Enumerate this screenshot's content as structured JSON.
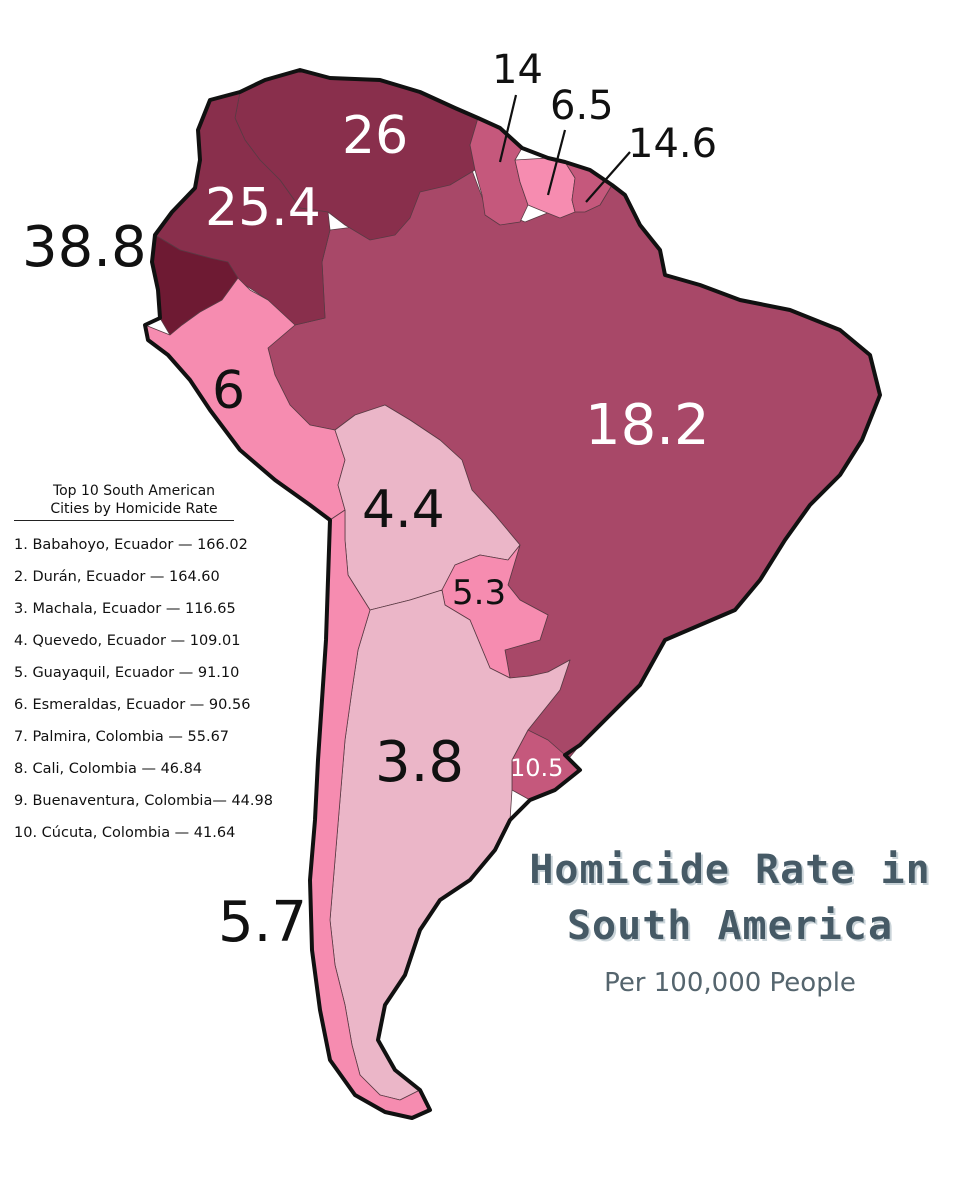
{
  "title": {
    "line1": "Homicide Rate in",
    "line2": "South America",
    "subtitle": "Per 100,000 People"
  },
  "colors": {
    "darkest": "#6e1a33",
    "dark": "#892f4c",
    "medium_dark": "#a84868",
    "medium": "#c5587c",
    "light": "#f68cb0",
    "lightest": "#ebb6c8",
    "outline": "#111111",
    "title": "#465a66"
  },
  "countries": [
    {
      "name": "Ecuador",
      "rate": "38.8"
    },
    {
      "name": "Venezuela",
      "rate": "26"
    },
    {
      "name": "Colombia",
      "rate": "25.4"
    },
    {
      "name": "Brazil",
      "rate": "18.2"
    },
    {
      "name": "Guyana",
      "rate": "14"
    },
    {
      "name": "Suriname",
      "rate": "6.5"
    },
    {
      "name": "French Guiana",
      "rate": "14.6"
    },
    {
      "name": "Peru",
      "rate": "6"
    },
    {
      "name": "Bolivia",
      "rate": "4.4"
    },
    {
      "name": "Paraguay",
      "rate": "5.3"
    },
    {
      "name": "Uruguay",
      "rate": "10.5"
    },
    {
      "name": "Argentina",
      "rate": "3.8"
    },
    {
      "name": "Chile",
      "rate": "5.7"
    }
  ],
  "top10": {
    "heading_line1": "Top 10 South American",
    "heading_line2": "Cities by Homicide Rate",
    "items": [
      "1. Babahoyo, Ecuador — 166.02",
      "2. Durán, Ecuador — 164.60",
      "3. Machala, Ecuador — 116.65",
      "4. Quevedo, Ecuador — 109.01",
      "5. Guayaquil, Ecuador — 91.10",
      "6. Esmeraldas, Ecuador — 90.56",
      "7. Palmira, Colombia — 55.67",
      "8. Cali, Colombia — 46.84",
      "9. Buenaventura, Colombia— 44.98",
      "10. Cúcuta, Colombia — 41.64"
    ]
  }
}
